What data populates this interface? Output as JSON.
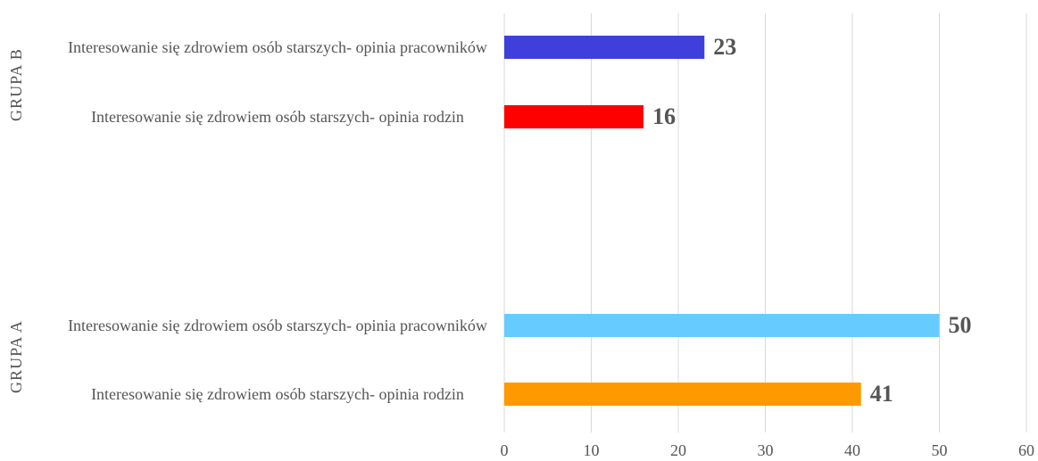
{
  "chart_data": {
    "type": "bar",
    "orientation": "horizontal",
    "groups": [
      {
        "name": "GRUPA B",
        "categories": [
          "Interesowanie się zdrowiem osób starszych- opinia pracowników",
          "Interesowanie się zdrowiem osób starszych- opinia rodzin"
        ],
        "values": [
          23,
          16
        ],
        "colors": [
          "#3f3fdb",
          "#ff0000"
        ]
      },
      {
        "name": "GRUPA A",
        "categories": [
          "Interesowanie się zdrowiem osób starszych- opinia pracowników",
          "Interesowanie się zdrowiem osób starszych- opinia rodzin"
        ],
        "values": [
          50,
          41
        ],
        "colors": [
          "#66ccff",
          "#ff9900"
        ]
      }
    ],
    "xlim": [
      0,
      60
    ],
    "xticks": [
      0,
      10,
      20,
      30,
      40,
      50,
      60
    ],
    "grid": true
  }
}
